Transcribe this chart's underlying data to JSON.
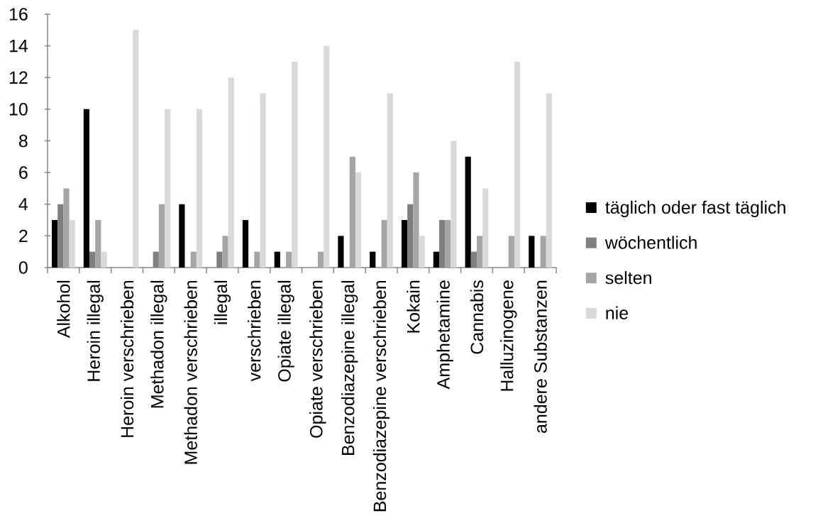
{
  "chart_data": {
    "type": "bar",
    "categories": [
      "Alkohol",
      "Heroin illegal",
      "Heroin verschrieben",
      "Methadon illegal",
      "Methadon verschrieben",
      "illegal",
      "verschrieben",
      "Opiate illegal",
      "Opiate verschrieben",
      "Benzodiazepine illegal",
      "Benzodiazepine verschrieben",
      "Kokain",
      "Amphetamine",
      "Cannabis",
      "Halluzinogene",
      "andere Substanzen"
    ],
    "series": [
      {
        "name": "täglich oder fast täglich",
        "color": "#000000",
        "values": [
          3,
          10,
          0,
          0,
          4,
          0,
          3,
          1,
          0,
          2,
          1,
          3,
          1,
          7,
          0,
          2
        ]
      },
      {
        "name": "wöchentlich",
        "color": "#7f7f7f",
        "values": [
          4,
          1,
          0,
          1,
          0,
          1,
          0,
          0,
          0,
          0,
          0,
          4,
          3,
          1,
          0,
          0
        ]
      },
      {
        "name": "selten",
        "color": "#a5a5a5",
        "values": [
          5,
          3,
          0,
          4,
          1,
          2,
          1,
          1,
          1,
          7,
          3,
          6,
          3,
          2,
          2,
          2
        ]
      },
      {
        "name": "nie",
        "color": "#d9d9d9",
        "values": [
          3,
          1,
          15,
          10,
          10,
          12,
          11,
          13,
          14,
          6,
          11,
          2,
          8,
          5,
          13,
          11
        ]
      }
    ],
    "ylim": [
      0,
      16
    ],
    "yticks": [
      0,
      2,
      4,
      6,
      8,
      10,
      12,
      14,
      16
    ],
    "legend": "right"
  }
}
